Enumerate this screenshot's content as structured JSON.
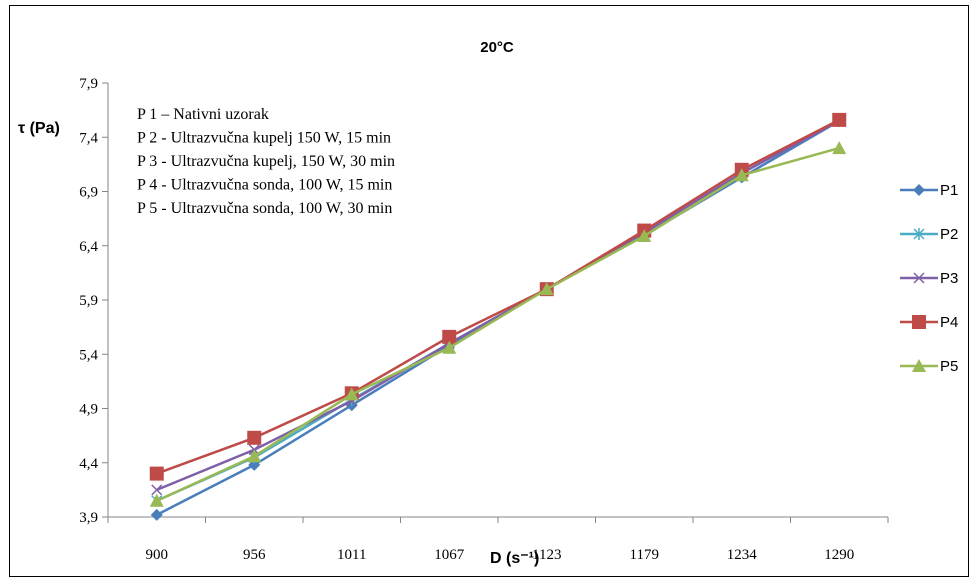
{
  "chart_data": {
    "type": "line",
    "title": "20°C",
    "ylabel": "τ (Pa)",
    "xlabel": "D (s⁻¹)",
    "categories": [
      "900",
      "956",
      "1011",
      "1067",
      "1123",
      "1179",
      "1234",
      "1290"
    ],
    "yticks": [
      "3,9",
      "4,4",
      "4,9",
      "5,4",
      "5,9",
      "6,4",
      "6,9",
      "7,4",
      "7,9"
    ],
    "ylim": [
      3.9,
      7.9
    ],
    "grid": false,
    "legend_position": "right",
    "annotations": [
      "P 1 – Nativni uzorak",
      "P 2 - Ultrazvučna kupelj 150 W, 15 min",
      "P 3 - Ultrazvučna kupelj, 150 W, 30 min",
      "P 4 - Ultrazvučna sonda, 100 W, 15 min",
      "P 5 - Ultrazvučna sonda, 100 W, 30 min"
    ],
    "series": [
      {
        "name": "P1",
        "color": "#4a7ebb",
        "marker": "diamond",
        "values": [
          3.92,
          4.38,
          4.93,
          5.48,
          6.0,
          6.5,
          7.03,
          7.55
        ]
      },
      {
        "name": "P2",
        "color": "#4bacc6",
        "marker": "star",
        "values": [
          4.05,
          4.45,
          4.98,
          5.5,
          6.0,
          6.52,
          7.07,
          7.55
        ]
      },
      {
        "name": "P3",
        "color": "#7f5fa8",
        "marker": "x",
        "values": [
          4.15,
          4.52,
          4.97,
          5.5,
          6.0,
          6.52,
          7.07,
          7.55
        ]
      },
      {
        "name": "P4",
        "color": "#be4b48",
        "marker": "square",
        "values": [
          4.3,
          4.63,
          5.04,
          5.56,
          6.0,
          6.54,
          7.1,
          7.56
        ]
      },
      {
        "name": "P5",
        "color": "#98b954",
        "marker": "triangle",
        "values": [
          4.05,
          4.46,
          5.03,
          5.46,
          6.0,
          6.49,
          7.05,
          7.3
        ]
      }
    ]
  }
}
